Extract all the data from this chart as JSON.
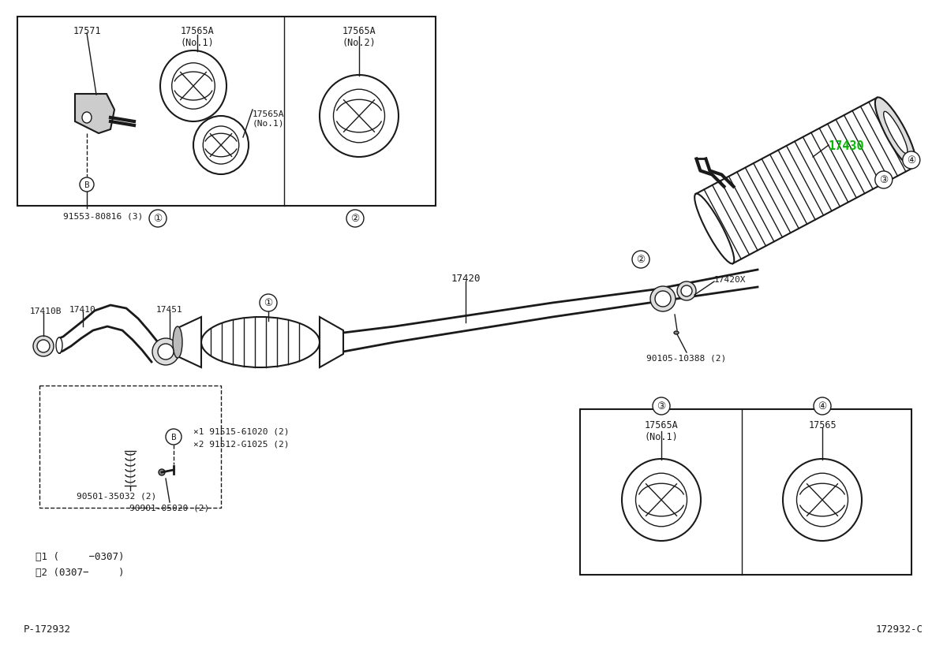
{
  "bg_color": "#ffffff",
  "line_color": "#1a1a1a",
  "highlight_color": "#00bb00",
  "page_id_left": "P-172932",
  "page_id_right": "172932-C",
  "parts": {
    "top_box_label1": "17571",
    "top_box_label2a_upper": "17565A\n(No.1)",
    "top_box_label2a_lower": "17565A\n(No.1)",
    "top_box_ref": "91553-80816 (3)",
    "top_box2_label": "17565A\n(No.2)",
    "main_17410B": "17410B",
    "main_17410": "17410",
    "main_17451": "17451",
    "main_17420": "17420",
    "main_17420X": "17420X",
    "main_17430": "17430",
    "main_bolt1": "×1 91515-61020 (2)",
    "main_bolt2": "×2 91512-G1025 (2)",
    "main_90501": "90501-35032 (2)",
    "main_90901": "90901-05020 (2)",
    "main_bolt_ref": "90105-10388 (2)",
    "note1": "×1 (     −0307)",
    "note2": "×2 (0307−     )",
    "bottom_label3a": "17565A\n(No.1)",
    "bottom_label4": "17565"
  }
}
